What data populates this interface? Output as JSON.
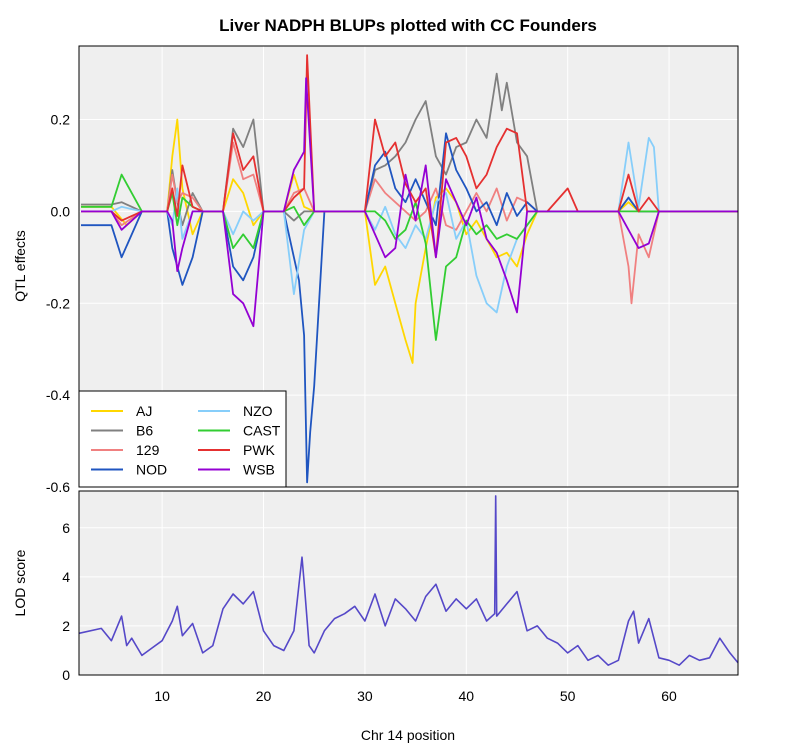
{
  "chart_data": [
    {
      "type": "line",
      "title": "Liver NADPH BLUPs plotted with CC Founders",
      "xlabel": "",
      "ylabel": "QTL effects",
      "xlim": [
        1.8,
        66.8
      ],
      "ylim": [
        -0.6,
        0.36
      ],
      "yticks": [
        "0.2",
        "0.0",
        "-0.2",
        "-0.4",
        "-0.6"
      ],
      "ytick_values": [
        0.2,
        0.0,
        -0.2,
        -0.4,
        -0.6
      ],
      "grid": true,
      "legend_position": "bottom-left",
      "series": [
        {
          "name": "AJ",
          "color": "#FFD700",
          "x": [
            2,
            5,
            6.5,
            8,
            9,
            10.5,
            11,
            11.5,
            12,
            13,
            14,
            16,
            17,
            18,
            19,
            20,
            21,
            22,
            23,
            24,
            25,
            26,
            27,
            28,
            29,
            30,
            31,
            32,
            33,
            34,
            34.7,
            35,
            36,
            37,
            38,
            39,
            40,
            41,
            42,
            43,
            44,
            45,
            46,
            47,
            48,
            50,
            51,
            55,
            56,
            57,
            58,
            59,
            66.8
          ],
          "y": [
            0.01,
            0.01,
            -0.03,
            0,
            0,
            0,
            0.12,
            0.2,
            0.05,
            -0.05,
            0,
            0,
            0.07,
            0.04,
            -0.03,
            0,
            0,
            0,
            0.08,
            0.01,
            0,
            0,
            0,
            0,
            0,
            0,
            -0.16,
            -0.12,
            -0.2,
            -0.28,
            -0.33,
            -0.2,
            -0.08,
            0.03,
            0.05,
            0.02,
            -0.05,
            -0.02,
            -0.06,
            -0.1,
            -0.09,
            -0.12,
            -0.05,
            0,
            0,
            0,
            0,
            0,
            0.02,
            0,
            0,
            0,
            0
          ]
        },
        {
          "name": "B6",
          "color": "#808080",
          "x": [
            2,
            5,
            6,
            8,
            10.5,
            11,
            11.5,
            12,
            13,
            14,
            16,
            17,
            18,
            19,
            20,
            21,
            22,
            23,
            24,
            25,
            26,
            27,
            28,
            29,
            30,
            31,
            32,
            33,
            34,
            35,
            36,
            37,
            38,
            39,
            40,
            41,
            42,
            43,
            43.5,
            44,
            45,
            46,
            47,
            48,
            50,
            51,
            55,
            56,
            57,
            58,
            59,
            66.8
          ],
          "y": [
            0.015,
            0.015,
            0.02,
            0,
            0,
            0.09,
            0.02,
            -0.03,
            0.04,
            0,
            0,
            0.18,
            0.14,
            0.2,
            0,
            0,
            0,
            -0.02,
            0,
            0,
            0,
            0,
            0,
            0,
            0,
            0.09,
            0.1,
            0.12,
            0.15,
            0.2,
            0.24,
            0.12,
            0.08,
            0.14,
            0.15,
            0.2,
            0.16,
            0.3,
            0.22,
            0.28,
            0.15,
            0.12,
            0,
            0,
            0,
            0,
            0,
            0.03,
            0,
            0,
            0,
            0
          ]
        },
        {
          "name": "129",
          "color": "#F08080",
          "x": [
            2,
            5,
            6,
            8,
            10.5,
            11,
            11.5,
            12,
            13,
            14,
            16,
            17,
            18,
            19,
            20,
            21,
            22,
            23,
            24,
            25,
            26,
            27,
            28,
            29,
            30,
            31,
            32,
            33,
            34,
            35,
            36,
            37,
            38,
            39,
            40,
            41,
            42,
            43,
            44,
            45,
            46,
            47,
            48,
            50,
            51,
            55,
            56,
            56.3,
            57,
            58,
            59,
            66.8
          ],
          "y": [
            0,
            0,
            -0.03,
            0,
            0,
            0.08,
            0.02,
            0.04,
            0.03,
            0,
            0,
            0.15,
            0.07,
            0.08,
            0,
            0,
            0,
            0.04,
            0.05,
            0,
            0,
            0,
            0,
            0,
            0,
            0.07,
            0.04,
            0.02,
            0,
            -0.02,
            0,
            0.05,
            -0.03,
            -0.04,
            0,
            0.04,
            0,
            0.05,
            -0.02,
            0.03,
            0.02,
            0,
            0,
            0,
            0,
            0,
            -0.12,
            -0.2,
            -0.05,
            -0.1,
            0,
            0
          ]
        },
        {
          "name": "NOD",
          "color": "#1f55c0",
          "x": [
            2,
            5,
            6,
            8,
            10.5,
            11,
            11.5,
            12,
            13,
            14,
            16,
            17,
            18,
            19,
            20,
            21,
            22,
            23,
            23.5,
            24,
            24.3,
            24.6,
            25,
            26,
            27,
            28,
            29,
            30,
            31,
            32,
            33,
            34,
            35,
            36,
            37,
            38,
            39,
            40,
            41,
            42,
            43,
            44,
            45,
            46,
            47,
            48,
            50,
            51,
            55,
            56,
            57,
            58,
            59,
            66.8
          ],
          "y": [
            -0.03,
            -0.03,
            -0.1,
            0,
            0,
            -0.08,
            -0.12,
            -0.16,
            -0.1,
            0,
            0,
            -0.12,
            -0.15,
            -0.1,
            0,
            0,
            0,
            -0.1,
            -0.15,
            -0.27,
            -0.59,
            -0.48,
            -0.38,
            0,
            0,
            0,
            0,
            0,
            0.1,
            0.13,
            0.05,
            0.02,
            0.07,
            0.02,
            -0.03,
            0.17,
            0.09,
            0.05,
            0,
            0.02,
            -0.03,
            0.04,
            -0.01,
            0.02,
            0,
            0,
            0,
            0,
            0,
            0.03,
            0,
            0,
            0,
            0
          ]
        },
        {
          "name": "NZO",
          "color": "#87CEFA",
          "x": [
            2,
            5,
            6,
            8,
            10.5,
            11,
            11.5,
            12,
            13,
            14,
            16,
            17,
            18,
            19,
            20,
            21,
            22,
            23,
            24,
            25,
            26,
            27,
            28,
            29,
            30,
            31,
            32,
            33,
            34,
            35,
            36,
            37,
            38,
            39,
            40,
            41,
            42,
            43,
            44,
            45,
            46,
            47,
            48,
            50,
            51,
            55,
            56,
            57,
            58,
            58.5,
            59,
            66.8
          ],
          "y": [
            0,
            0,
            0.01,
            0,
            0,
            -0.03,
            0.05,
            -0.06,
            0,
            0,
            0,
            -0.05,
            0,
            -0.02,
            0,
            0,
            0,
            -0.18,
            -0.04,
            0,
            0,
            0,
            0,
            0,
            0,
            -0.04,
            0.01,
            -0.05,
            -0.08,
            -0.03,
            -0.06,
            0.02,
            0.04,
            -0.06,
            -0.02,
            -0.14,
            -0.2,
            -0.22,
            -0.12,
            -0.06,
            -0.03,
            0,
            0,
            0,
            0,
            0,
            0.15,
            0.01,
            0.16,
            0.14,
            0,
            0
          ]
        },
        {
          "name": "CAST",
          "color": "#32CD32",
          "x": [
            2,
            5,
            6,
            8,
            10.5,
            11,
            11.5,
            12,
            13,
            14,
            16,
            17,
            18,
            19,
            20,
            21,
            22,
            23,
            24,
            25,
            26,
            27,
            28,
            29,
            30,
            31,
            32,
            33,
            34,
            35,
            36,
            37,
            38,
            39,
            40,
            41,
            42,
            43,
            44,
            45,
            46,
            47,
            48,
            50,
            51,
            55,
            56,
            57,
            58,
            59,
            66.8
          ],
          "y": [
            0.01,
            0.01,
            0.08,
            0,
            0,
            0.04,
            -0.03,
            0.03,
            0.01,
            0,
            0,
            -0.08,
            -0.05,
            -0.08,
            0,
            0,
            0,
            0.01,
            -0.03,
            0,
            0,
            0,
            0,
            0,
            0,
            0,
            -0.02,
            -0.06,
            -0.04,
            0.02,
            -0.07,
            -0.28,
            -0.12,
            -0.1,
            -0.02,
            -0.05,
            -0.03,
            -0.06,
            -0.05,
            -0.06,
            -0.03,
            0,
            0,
            0,
            0,
            0,
            0,
            0,
            0,
            0,
            0
          ]
        },
        {
          "name": "PWK",
          "color": "#E53030",
          "x": [
            2,
            5,
            6,
            8,
            10.5,
            11,
            11.5,
            12,
            13,
            14,
            16,
            17,
            18,
            19,
            20,
            21,
            22,
            23,
            24,
            24.3,
            25,
            26,
            27,
            28,
            29,
            30,
            31,
            32,
            33,
            34,
            35,
            36,
            37,
            38,
            39,
            40,
            41,
            42,
            43,
            44,
            45,
            46,
            47,
            48,
            50,
            51,
            55,
            56,
            57,
            58,
            59,
            66.8
          ],
          "y": [
            0,
            0,
            -0.02,
            0,
            0,
            0.05,
            -0.01,
            0.1,
            0.01,
            0,
            0,
            0.17,
            0.09,
            0.12,
            0,
            0,
            0,
            0.03,
            0.05,
            0.34,
            0,
            0,
            0,
            0,
            0,
            0,
            0.2,
            0.12,
            0.15,
            0.06,
            0.02,
            0.05,
            -0.1,
            0.15,
            0.16,
            0.12,
            0.05,
            0.08,
            0.14,
            0.18,
            0.17,
            0,
            0,
            0,
            0.05,
            0,
            0,
            0.08,
            0,
            0.03,
            0,
            0
          ]
        },
        {
          "name": "WSB",
          "color": "#9400D3",
          "x": [
            2,
            5,
            6,
            8,
            10.5,
            11,
            11.5,
            12,
            13,
            14,
            16,
            17,
            18,
            19,
            20,
            21,
            22,
            23,
            24,
            24.2,
            25,
            26,
            27,
            28,
            29,
            30,
            31,
            32,
            33,
            34,
            35,
            36,
            37,
            38,
            39,
            40,
            41,
            42,
            43,
            44,
            45,
            46,
            47,
            48,
            50,
            51,
            55,
            56,
            57,
            58,
            59,
            66.8
          ],
          "y": [
            0,
            0,
            -0.04,
            0,
            0,
            -0.02,
            -0.13,
            -0.08,
            0,
            0,
            0,
            -0.18,
            -0.2,
            -0.25,
            0,
            0,
            0,
            0.09,
            0.13,
            0.29,
            0,
            0,
            0,
            0,
            0,
            0,
            -0.05,
            -0.1,
            -0.08,
            0.08,
            -0.02,
            0.1,
            -0.1,
            0.07,
            0.02,
            -0.03,
            0.03,
            -0.06,
            -0.09,
            -0.15,
            -0.22,
            0,
            0,
            0,
            0,
            0,
            0,
            -0.04,
            -0.08,
            -0.07,
            0,
            0
          ]
        }
      ]
    },
    {
      "type": "line",
      "title": "",
      "xlabel": "Chr 14 position",
      "ylabel": "LOD score",
      "xlim": [
        1.8,
        66.8
      ],
      "ylim": [
        0,
        7.5
      ],
      "xticks": [
        "10",
        "20",
        "30",
        "40",
        "50",
        "60"
      ],
      "xtick_values": [
        10,
        20,
        30,
        40,
        50,
        60
      ],
      "yticks": [
        "0",
        "2",
        "4",
        "6"
      ],
      "ytick_values": [
        0,
        2,
        4,
        6
      ],
      "grid": true,
      "series": [
        {
          "name": "",
          "color": "#5548C8",
          "x": [
            1.8,
            4,
            5,
            6,
            6.5,
            7,
            8,
            9,
            10,
            11,
            11.5,
            12,
            13,
            14,
            15,
            16,
            17,
            18,
            19,
            20,
            21,
            22,
            23,
            23.8,
            24,
            24.5,
            25,
            26,
            27,
            28,
            29,
            30,
            31,
            32,
            33,
            34,
            35,
            36,
            37,
            38,
            39,
            40,
            41,
            42,
            42.8,
            42.9,
            43,
            44,
            45,
            46,
            47,
            48,
            49,
            50,
            51,
            52,
            53,
            54,
            55,
            56,
            56.5,
            57,
            58,
            59,
            60,
            61,
            62,
            63,
            64,
            65,
            66,
            66.8
          ],
          "y": [
            1.7,
            1.9,
            1.4,
            2.4,
            1.2,
            1.5,
            0.8,
            1.1,
            1.4,
            2.2,
            2.8,
            1.6,
            2.1,
            0.9,
            1.2,
            2.7,
            3.3,
            2.9,
            3.4,
            1.8,
            1.2,
            1.0,
            1.8,
            4.8,
            3.8,
            1.2,
            0.9,
            1.8,
            2.3,
            2.5,
            2.8,
            2.2,
            3.3,
            2.0,
            3.1,
            2.7,
            2.2,
            3.2,
            3.7,
            2.6,
            3.1,
            2.7,
            3.1,
            2.2,
            2.5,
            7.3,
            2.4,
            2.9,
            3.4,
            1.8,
            2.0,
            1.5,
            1.3,
            0.9,
            1.2,
            0.6,
            0.8,
            0.4,
            0.6,
            2.2,
            2.6,
            1.3,
            2.3,
            0.7,
            0.6,
            0.4,
            0.8,
            0.6,
            0.7,
            1.5,
            0.9,
            0.5
          ]
        }
      ]
    }
  ]
}
